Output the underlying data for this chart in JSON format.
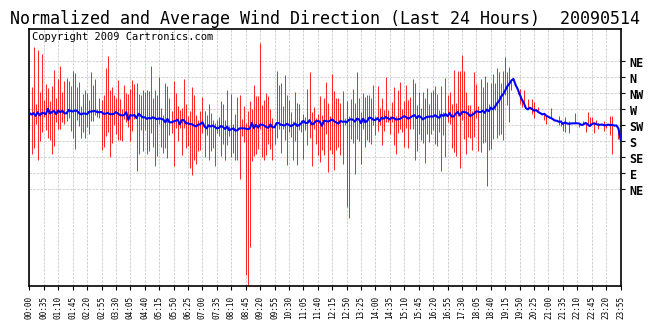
{
  "title": "Normalized and Average Wind Direction (Last 24 Hours)  20090514",
  "copyright": "Copyright 2009 Cartronics.com",
  "background_color": "#ffffff",
  "plot_bg_color": "#ffffff",
  "grid_color": "#bbbbbb",
  "ytick_vals": [
    360,
    337.5,
    315,
    292.5,
    270,
    247.5,
    225,
    202.5,
    180
  ],
  "ytick_labs": [
    "NE",
    "N",
    "NW",
    "W",
    "SW",
    "S",
    "SE",
    "E",
    "NE"
  ],
  "ymin": 45,
  "ymax": 405,
  "xtick_labels": [
    "00:00",
    "00:35",
    "01:10",
    "01:45",
    "02:20",
    "02:55",
    "03:30",
    "04:05",
    "04:40",
    "05:15",
    "05:50",
    "06:25",
    "07:00",
    "07:35",
    "08:10",
    "08:45",
    "09:20",
    "09:55",
    "10:30",
    "11:05",
    "11:40",
    "12:15",
    "12:50",
    "13:25",
    "14:00",
    "14:35",
    "15:10",
    "15:45",
    "16:20",
    "16:55",
    "17:30",
    "18:05",
    "18:40",
    "19:15",
    "19:50",
    "20:25",
    "21:00",
    "21:35",
    "22:10",
    "22:45",
    "23:20",
    "23:55"
  ],
  "red_color": "#ff0000",
  "blue_color": "#0000ff",
  "title_fontsize": 12,
  "copyright_fontsize": 7.5,
  "n_points": 288,
  "seed": 12
}
